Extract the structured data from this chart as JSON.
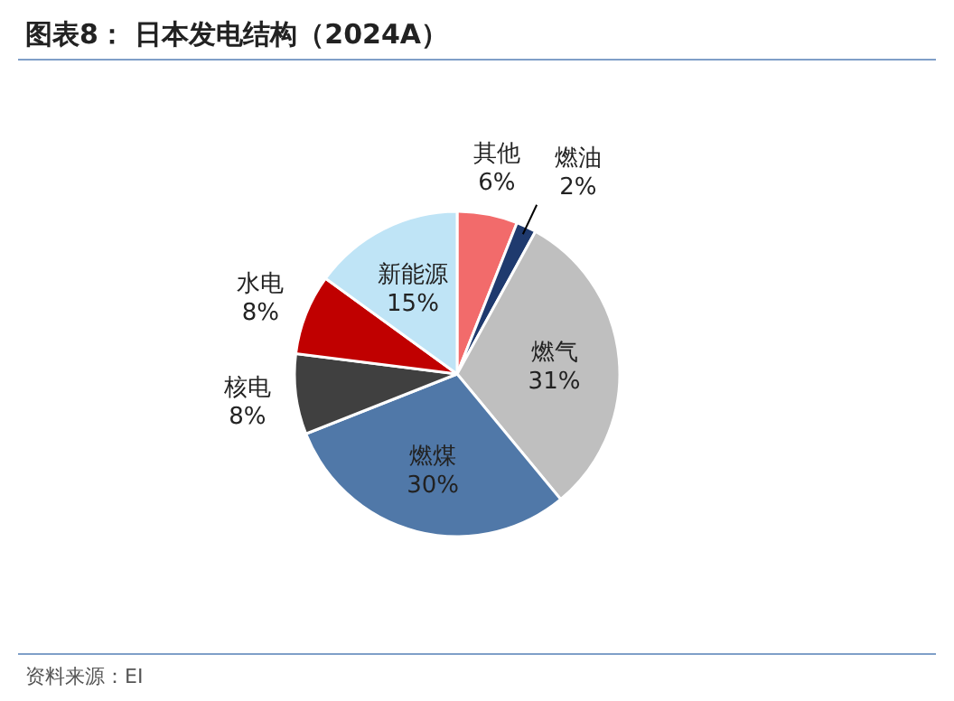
{
  "chart_data": {
    "type": "pie",
    "title": "图表8：  日本发电结构（2024A）",
    "categories": [
      "其他",
      "燃油",
      "燃气",
      "燃煤",
      "核电",
      "水电",
      "新能源"
    ],
    "values": [
      6,
      2,
      31,
      30,
      8,
      8,
      15
    ],
    "colors": [
      "#f26b6b",
      "#1f3a6e",
      "#bfbfbf",
      "#5078a8",
      "#404040",
      "#c00000",
      "#bfe4f6"
    ],
    "value_labels": [
      "6%",
      "2%",
      "31%",
      "30%",
      "8%",
      "8%",
      "15%"
    ],
    "annotations": [
      "资料来源：EI"
    ]
  }
}
